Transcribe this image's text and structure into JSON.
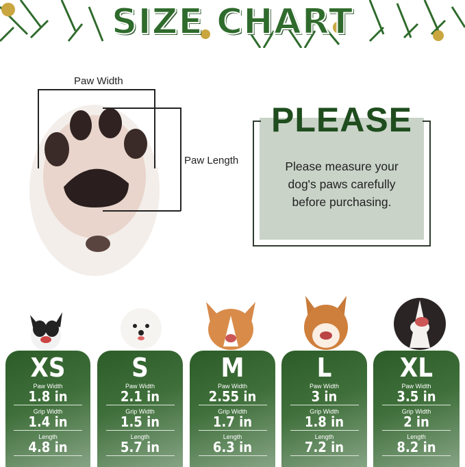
{
  "header": {
    "title": "SIZE CHART"
  },
  "measure": {
    "paw_width_label": "Paw Width",
    "paw_length_label": "Paw Length"
  },
  "notice": {
    "title": "PLEASE",
    "line1": "Please measure your",
    "line2": "dog's paws carefully",
    "line3": "before purchasing."
  },
  "sizes": [
    {
      "size": "XS",
      "paw_width_label": "Paw Width",
      "paw_width": "1.8 in",
      "grip_width_label": "Grip Width",
      "grip_width": "1.4 in",
      "length_label": "Length",
      "length": "4.8 in"
    },
    {
      "size": "S",
      "paw_width_label": "Paw Width",
      "paw_width": "2.1 in",
      "grip_width_label": "Grip Width",
      "grip_width": "1.5 in",
      "length_label": "Length",
      "length": "5.7 in"
    },
    {
      "size": "M",
      "paw_width_label": "Paw Width",
      "paw_width": "2.55 in",
      "grip_width_label": "Grip Width",
      "grip_width": "1.7 in",
      "length_label": "Length",
      "length": "6.3 in"
    },
    {
      "size": "L",
      "paw_width_label": "Paw Width",
      "paw_width": "3 in",
      "grip_width_label": "Grip Width",
      "grip_width": "1.8 in",
      "length_label": "Length",
      "length": "7.2 in"
    },
    {
      "size": "XL",
      "paw_width_label": "Paw Width",
      "paw_width": "3.5 in",
      "grip_width_label": "Grip Width",
      "grip_width": "2 in",
      "length_label": "Length",
      "length": "8.2 in"
    }
  ],
  "colors": {
    "brand_green": "#2f6b2c",
    "notice_bg": "#c9d3c8"
  }
}
